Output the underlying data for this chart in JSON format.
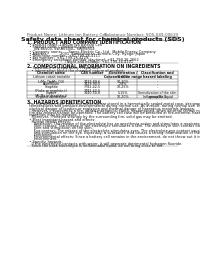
{
  "bg_color": "#ffffff",
  "header_top_left": "Product Name: Lithium Ion Battery Cell",
  "header_top_right": "Substance Number: SDS-049-00619\nEstablishment / Revision: Dec.7.2016",
  "title": "Safety data sheet for chemical products (SDS)",
  "section1_title": "1. PRODUCT AND COMPANY IDENTIFICATION",
  "section1_lines": [
    "  • Product name: Lithium Ion Battery Cell",
    "  • Product code: Cylindrical-type cell",
    "      SW-B6500, SW-B6500L, SW-B6504",
    "  • Company name:      Sanyo Electric Co., Ltd.  Mobile Energy Company",
    "  • Address:           2001  Kamitosukan, Sumoto-City, Hyogo, Japan",
    "  • Telephone number:  +81-799-26-4111",
    "  • Fax number:  +81-799-26-4129",
    "  • Emergency telephone number (daytime): +81-799-26-2662",
    "                                  (Night and holiday): +81-799-26-4101"
  ],
  "section2_title": "2. COMPOSITIONAL INFORMATION ON INGREDIENTS",
  "section2_sub1": "  • Substance or preparation: Preparation",
  "section2_sub2": "    • Information about the chemical nature of product:",
  "table_col_headers": [
    "Chemical name",
    "CAS number",
    "Concentration /\nConcentration range",
    "Classification and\nhazard labeling"
  ],
  "table_rows": [
    [
      "Lithium cobalt tantalite\n(LiMn-Co-Mn-O4)",
      "-",
      "30-60%",
      "-"
    ],
    [
      "Iron",
      "7439-89-6",
      "10-30%",
      "-"
    ],
    [
      "Aluminium",
      "7429-90-5",
      "2-8%",
      "-"
    ],
    [
      "Graphite\n(Flake or graphite-t)\n(Al-Mo or graphite-t)",
      "7782-42-5\n7782-42-5",
      "10-25%",
      "-"
    ],
    [
      "Copper",
      "7440-50-8",
      "5-15%",
      "Sensitization of the skin\ngroup No.2"
    ],
    [
      "Organic electrolyte",
      "-",
      "10-20%",
      "Inflammable liquid"
    ]
  ],
  "section3_title": "3. HAZARDS IDENTIFICATION",
  "section3_lines": [
    "  For the battery cell, chemical materials are stored in a hermetically sealed metal case, designed to withstand",
    "  temperatures and pressure-environmental during normal use. As a result, during normal use, there is no",
    "  physical danger of ignition or explosion and thermal-danger of hazardous materials leakage.",
    "    However, if exposed to a fire, added mechanical shock, decomposed, when external stimuli may cause",
    "  fire gas release cannot be operated. The battery cell case will be breached at fire-extreme, hazardous",
    "  materials may be released.",
    "    Moreover, if heated strongly by the surrounding fire, solid gas may be emitted."
  ],
  "section3_bullet1": "  • Most important hazard and effects:",
  "section3_sub_lines": [
    "    Human health effects:",
    "      Inhalation: The release of the electrolyte has an anesthesia action and stimulates a respiratory tract.",
    "      Skin contact: The release of the electrolyte stimulates a skin. The electrolyte skin contact causes a",
    "      sore and stimulation on the skin.",
    "      Eye contact: The release of the electrolyte stimulates eyes. The electrolyte eye contact causes a sore",
    "      and stimulation on the eye. Especially, a substance that causes a strong inflammation of the eye is",
    "      contained.",
    "      Environmental effects: Since a battery cell remains in the environment, do not throw out it into the",
    "      environment."
  ],
  "section3_bullet2": "  • Specific hazards:",
  "section3_specific_lines": [
    "    If the electrolyte contacts with water, it will generate detrimental hydrogen fluoride.",
    "    Since the base electrolyte is inflammable liquid, do not bring close to fire."
  ],
  "line_color": "#888888",
  "text_color": "#111111",
  "header_color": "#555555",
  "fs_header": 3.0,
  "fs_title": 4.5,
  "fs_section": 3.3,
  "fs_body": 2.5,
  "fs_table": 2.3,
  "line_step": 2.8,
  "section_step": 3.5
}
